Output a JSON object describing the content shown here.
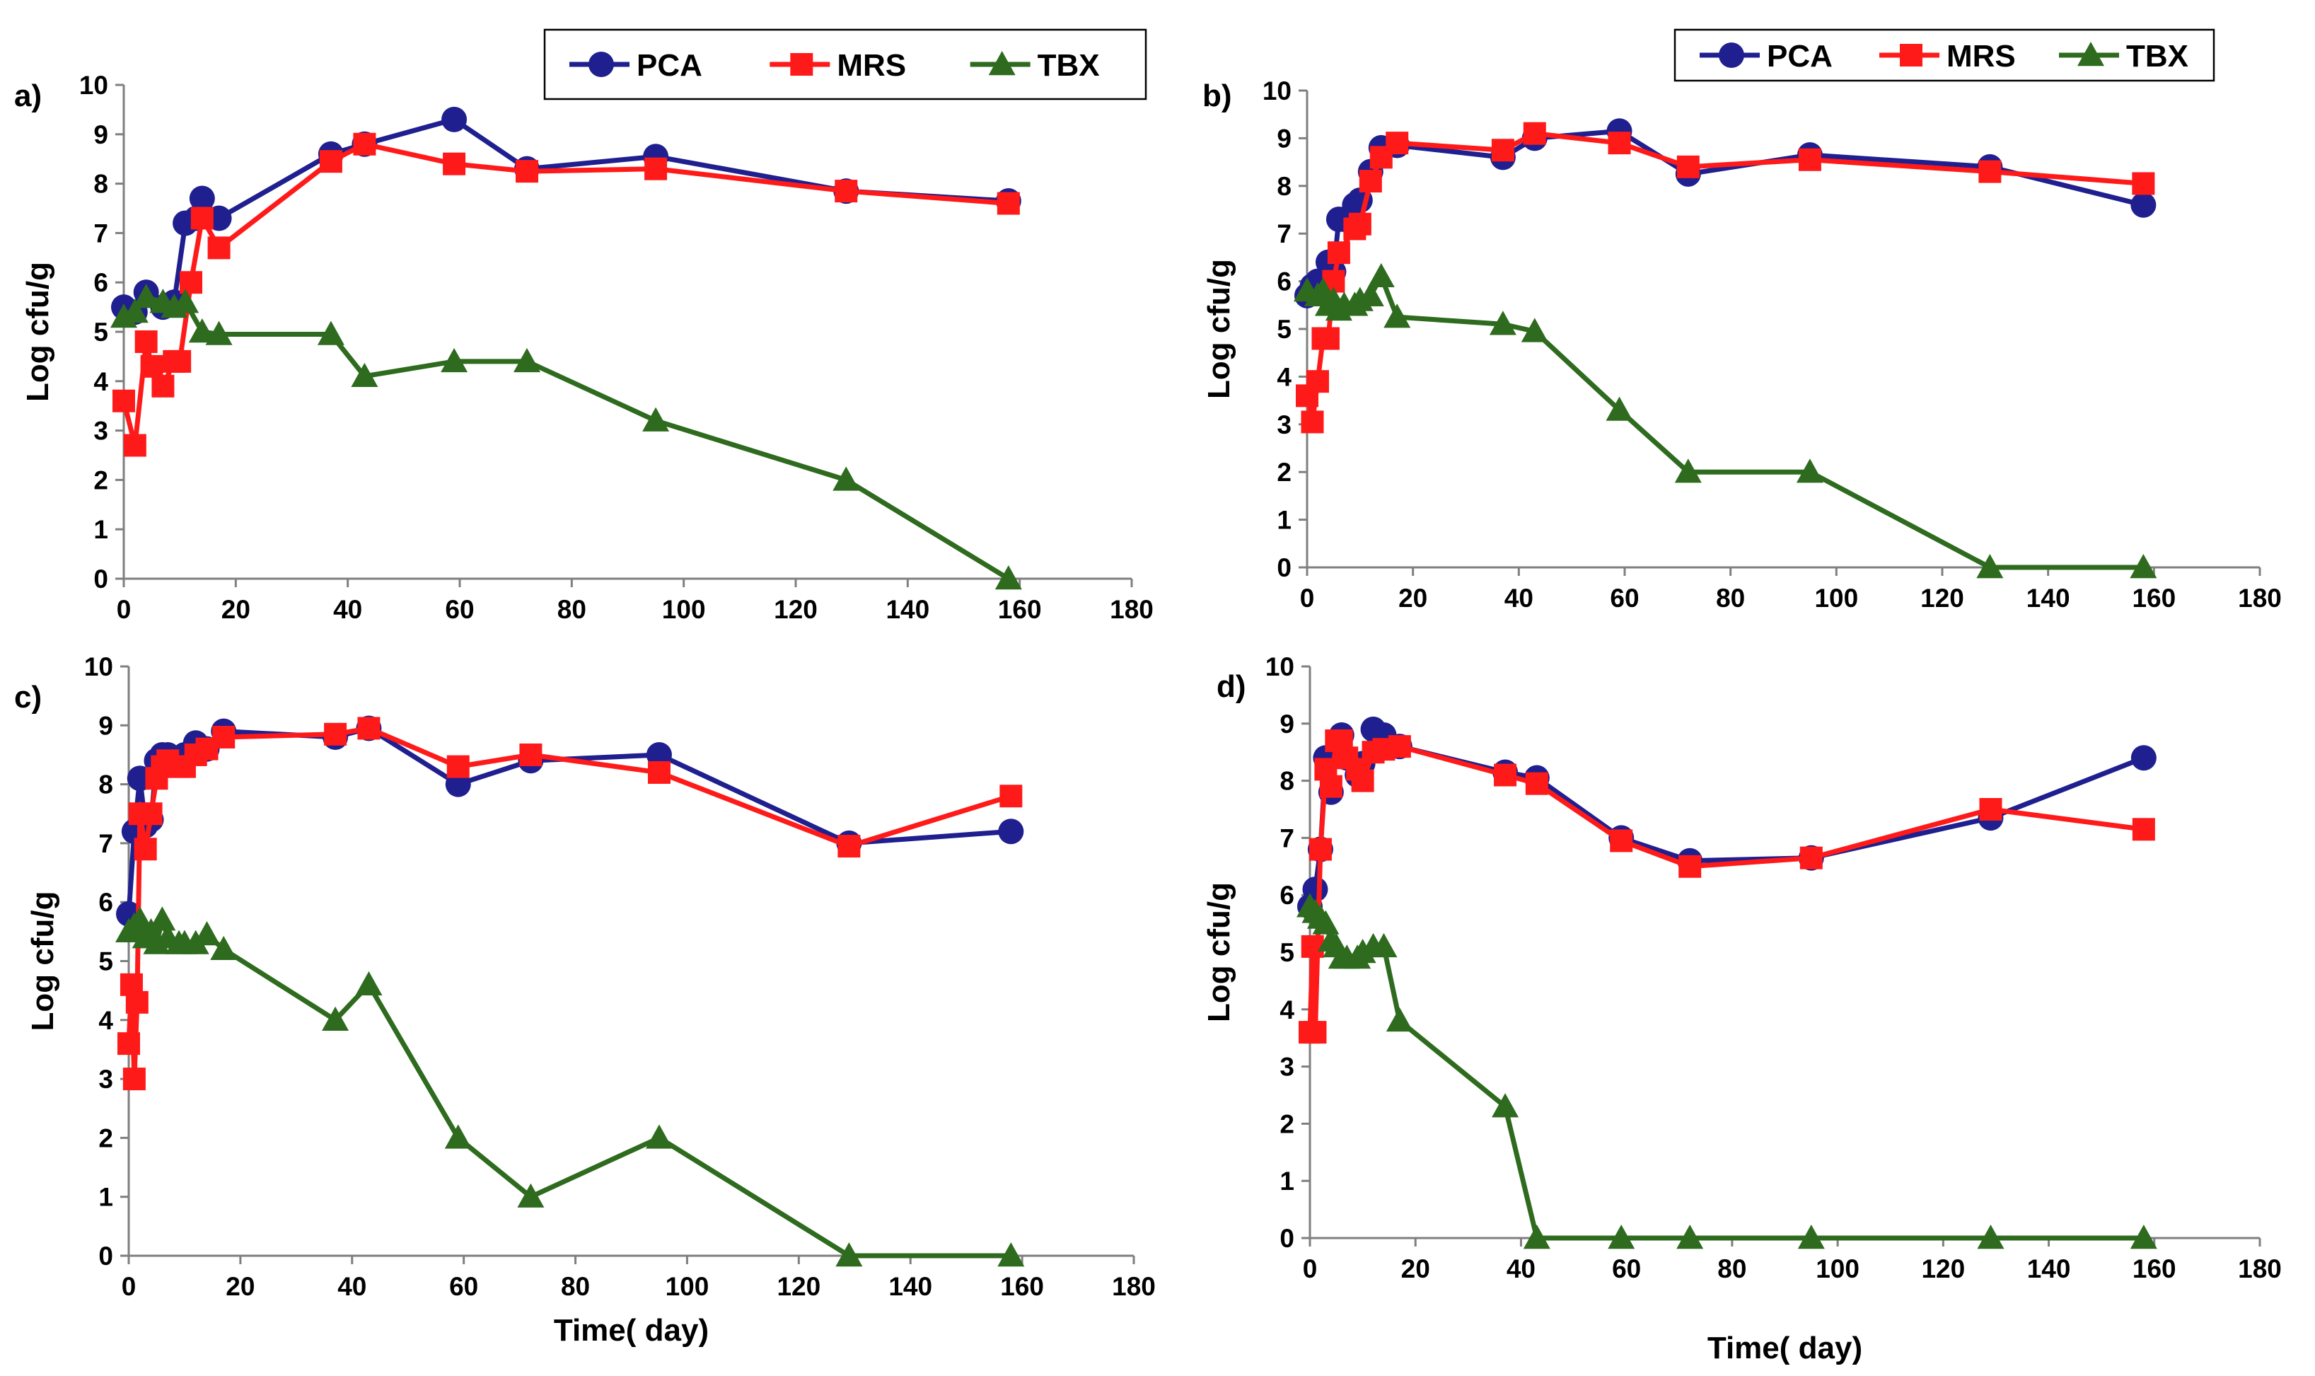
{
  "chart_data": [
    {
      "panel": "a)",
      "type": "line",
      "xlabel": "",
      "ylabel": "Log cfu/g",
      "xlim": [
        0,
        180
      ],
      "ylim": [
        0,
        10
      ],
      "xticks": [
        0,
        20,
        40,
        60,
        80,
        100,
        120,
        140,
        160,
        180
      ],
      "yticks": [
        0,
        1,
        2,
        3,
        4,
        5,
        6,
        7,
        8,
        9,
        10
      ],
      "legend": [
        "PCA",
        "MRS",
        "TBX"
      ],
      "series": [
        {
          "name": "PCA",
          "color": "#1f1f8f",
          "marker": "circle",
          "x": [
            0,
            2,
            4,
            7,
            9,
            11,
            13,
            14,
            17,
            37,
            43,
            59,
            72,
            95,
            129,
            158
          ],
          "y": [
            5.5,
            5.4,
            5.8,
            5.5,
            5.6,
            7.2,
            7.3,
            7.7,
            7.3,
            8.6,
            8.8,
            9.3,
            8.3,
            8.55,
            7.85,
            7.65
          ]
        },
        {
          "name": "MRS",
          "color": "#ff1a1a",
          "marker": "square",
          "x": [
            0,
            2,
            4,
            5,
            7,
            9,
            10,
            12,
            14,
            17,
            37,
            43,
            59,
            72,
            95,
            129,
            158
          ],
          "y": [
            3.6,
            2.7,
            4.8,
            4.3,
            3.9,
            4.4,
            4.4,
            6.0,
            7.3,
            6.7,
            8.45,
            8.8,
            8.4,
            8.25,
            8.3,
            7.85,
            7.6
          ]
        },
        {
          "name": "TBX",
          "color": "#2e6b1e",
          "marker": "triangle",
          "x": [
            0,
            2,
            4,
            7,
            9,
            11,
            14,
            17,
            37,
            43,
            59,
            72,
            95,
            129,
            158
          ],
          "y": [
            5.3,
            5.4,
            5.7,
            5.6,
            5.5,
            5.6,
            5.0,
            4.95,
            4.95,
            4.1,
            4.4,
            4.4,
            3.2,
            2.0,
            0
          ]
        }
      ]
    },
    {
      "panel": "b)",
      "type": "line",
      "xlabel": "",
      "ylabel": "Log cfu/g",
      "xlim": [
        0,
        180
      ],
      "ylim": [
        0,
        10
      ],
      "xticks": [
        0,
        20,
        40,
        60,
        80,
        100,
        120,
        140,
        160,
        180
      ],
      "yticks": [
        0,
        1,
        2,
        3,
        4,
        5,
        6,
        7,
        8,
        9,
        10
      ],
      "legend": [
        "PCA",
        "MRS",
        "TBX"
      ],
      "series": [
        {
          "name": "PCA",
          "color": "#1f1f8f",
          "marker": "circle",
          "x": [
            0,
            1,
            2,
            4,
            5,
            6,
            7,
            9,
            10,
            12,
            14,
            17,
            37,
            43,
            59,
            72,
            95,
            129,
            158
          ],
          "y": [
            5.7,
            5.9,
            6.0,
            6.4,
            6.2,
            7.3,
            7.3,
            7.6,
            7.7,
            8.3,
            8.8,
            8.85,
            8.6,
            9.0,
            9.15,
            8.25,
            8.65,
            8.4,
            7.6
          ]
        },
        {
          "name": "MRS",
          "color": "#ff1a1a",
          "marker": "square",
          "x": [
            0,
            1,
            2,
            3,
            4,
            5,
            6,
            9,
            10,
            12,
            14,
            17,
            37,
            43,
            59,
            72,
            95,
            129,
            158
          ],
          "y": [
            3.6,
            3.05,
            3.9,
            4.8,
            4.8,
            6.0,
            6.6,
            7.1,
            7.2,
            8.1,
            8.6,
            8.9,
            8.75,
            9.1,
            8.9,
            8.4,
            8.55,
            8.3,
            8.05
          ]
        },
        {
          "name": "TBX",
          "color": "#2e6b1e",
          "marker": "triangle",
          "x": [
            0,
            2,
            3,
            4,
            5,
            6,
            7,
            9,
            10,
            12,
            14,
            17,
            37,
            43,
            59,
            72,
            95,
            129,
            158
          ],
          "y": [
            5.8,
            5.7,
            5.8,
            5.5,
            5.6,
            5.4,
            5.5,
            5.5,
            5.6,
            5.7,
            6.1,
            5.25,
            5.1,
            4.95,
            3.3,
            2.0,
            2.0,
            0,
            0
          ]
        }
      ]
    },
    {
      "panel": "c)",
      "type": "line",
      "xlabel": "Time( day)",
      "ylabel": "Log cfu/g",
      "xlim": [
        0,
        180
      ],
      "ylim": [
        0,
        10
      ],
      "xticks": [
        0,
        20,
        40,
        60,
        80,
        100,
        120,
        140,
        160,
        180
      ],
      "yticks": [
        0,
        1,
        2,
        3,
        4,
        5,
        6,
        7,
        8,
        9,
        10
      ],
      "legend": [
        "PCA",
        "MRS",
        "TBX"
      ],
      "series": [
        {
          "name": "PCA",
          "color": "#1f1f8f",
          "marker": "circle",
          "x": [
            0,
            1,
            2,
            3,
            4,
            5,
            6,
            7,
            9,
            10,
            12,
            14,
            17,
            37,
            43,
            59,
            72,
            95,
            129,
            158
          ],
          "y": [
            5.8,
            7.2,
            8.1,
            7.3,
            7.4,
            8.4,
            8.5,
            8.5,
            8.4,
            8.5,
            8.7,
            8.6,
            8.9,
            8.8,
            8.95,
            8.0,
            8.4,
            8.5,
            7.0,
            7.2
          ]
        },
        {
          "name": "MRS",
          "color": "#ff1a1a",
          "marker": "square",
          "x": [
            0,
            0.5,
            1,
            1.5,
            2,
            3,
            4,
            5,
            6,
            7,
            9,
            10,
            12,
            14,
            17,
            37,
            43,
            59,
            72,
            95,
            129,
            158
          ],
          "y": [
            3.6,
            4.6,
            3.0,
            4.3,
            7.5,
            6.9,
            7.5,
            8.1,
            8.3,
            8.4,
            8.3,
            8.3,
            8.5,
            8.6,
            8.8,
            8.85,
            8.95,
            8.3,
            8.5,
            8.2,
            6.95,
            7.8
          ]
        },
        {
          "name": "TBX",
          "color": "#2e6b1e",
          "marker": "triangle",
          "x": [
            0,
            1,
            2,
            3,
            4,
            5,
            6,
            7,
            9,
            10,
            12,
            14,
            17,
            37,
            43,
            59,
            72,
            95,
            129,
            158
          ],
          "y": [
            5.5,
            5.6,
            5.7,
            5.4,
            5.5,
            5.3,
            5.7,
            5.4,
            5.3,
            5.3,
            5.3,
            5.45,
            5.2,
            4.0,
            4.6,
            2.0,
            1.0,
            2.0,
            0,
            0
          ]
        }
      ]
    },
    {
      "panel": "d)",
      "type": "line",
      "xlabel": "Time( day)",
      "ylabel": "Log cfu/g",
      "xlim": [
        0,
        180
      ],
      "ylim": [
        0,
        10
      ],
      "xticks": [
        0,
        20,
        40,
        60,
        80,
        100,
        120,
        140,
        160,
        180
      ],
      "yticks": [
        0,
        1,
        2,
        3,
        4,
        5,
        6,
        7,
        8,
        9,
        10
      ],
      "legend": [
        "PCA",
        "MRS",
        "TBX"
      ],
      "series": [
        {
          "name": "PCA",
          "color": "#1f1f8f",
          "marker": "circle",
          "x": [
            0,
            1,
            2,
            3,
            4,
            5,
            6,
            7,
            9,
            10,
            12,
            14,
            17,
            37,
            43,
            59,
            72,
            95,
            129,
            158
          ],
          "y": [
            5.8,
            6.1,
            6.8,
            8.4,
            7.8,
            8.5,
            8.8,
            8.4,
            8.1,
            8.3,
            8.9,
            8.8,
            8.6,
            8.15,
            8.05,
            7.0,
            6.6,
            6.65,
            7.35,
            8.4
          ]
        },
        {
          "name": "MRS",
          "color": "#ff1a1a",
          "marker": "square",
          "x": [
            0,
            0.5,
            1,
            2,
            3,
            4,
            5,
            6,
            7,
            9,
            10,
            12,
            14,
            17,
            37,
            43,
            59,
            72,
            95,
            129,
            158
          ],
          "y": [
            3.6,
            5.1,
            3.6,
            6.8,
            8.2,
            7.9,
            8.7,
            8.7,
            8.4,
            8.2,
            8.0,
            8.5,
            8.55,
            8.6,
            8.1,
            7.95,
            6.95,
            6.5,
            6.65,
            7.5,
            7.15
          ]
        },
        {
          "name": "TBX",
          "color": "#2e6b1e",
          "marker": "triangle",
          "x": [
            0,
            1,
            2,
            3,
            4,
            5,
            6,
            7,
            9,
            10,
            12,
            14,
            17,
            37,
            43,
            59,
            72,
            95,
            129,
            158
          ],
          "y": [
            5.8,
            5.7,
            5.6,
            5.5,
            5.2,
            5.1,
            4.9,
            4.9,
            4.9,
            5.0,
            5.1,
            5.1,
            3.8,
            2.3,
            0,
            0,
            0,
            0,
            0,
            0
          ]
        }
      ]
    }
  ]
}
